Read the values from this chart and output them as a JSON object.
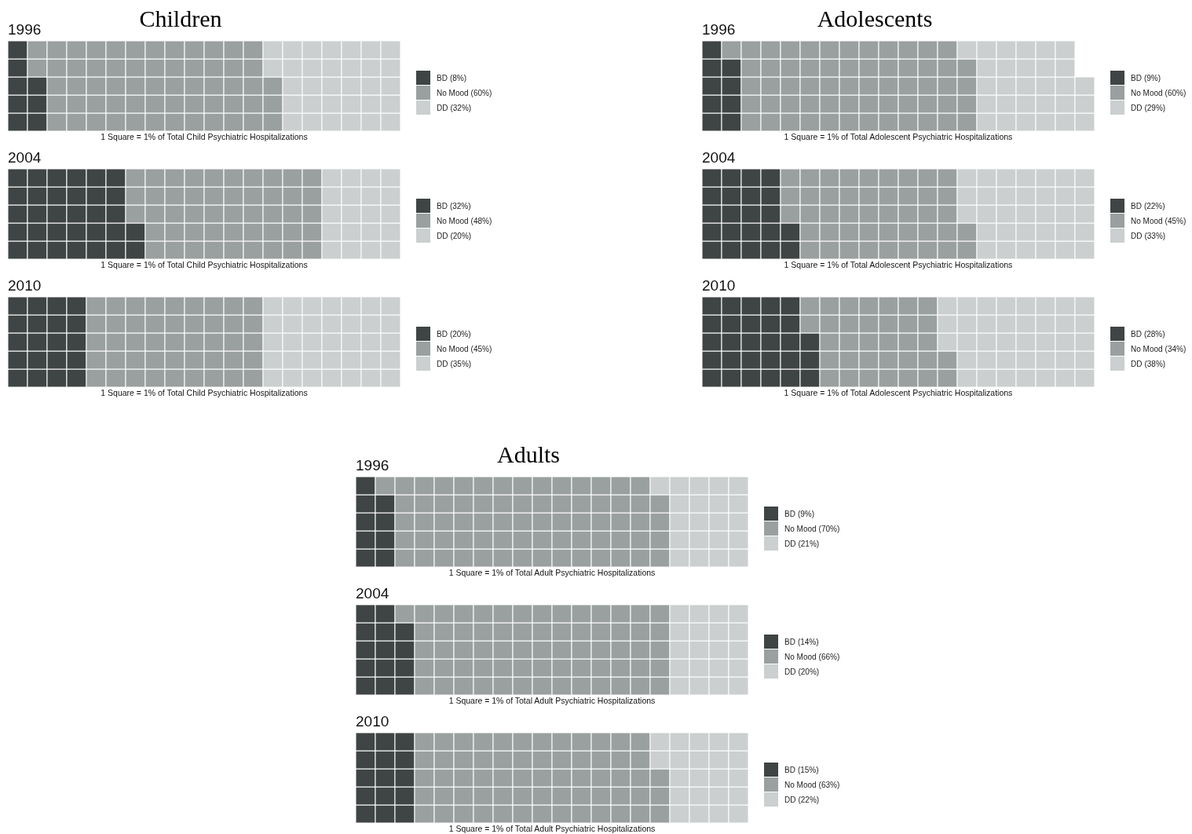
{
  "chart_data": [
    {
      "type": "other",
      "title": "Children",
      "subtitle": "1996",
      "categories": [
        "BD",
        "No Mood",
        "DD"
      ],
      "values": [
        8,
        60,
        32
      ],
      "value_labels": [
        "(8%)",
        "(60%)",
        "(32%)"
      ],
      "colors": [
        "#3f4444",
        "#9aa0a0",
        "#cbcfcf"
      ],
      "annotations": [
        "1 Square = 1% of Total Child Psychiatric Hospitalizations"
      ]
    },
    {
      "type": "other",
      "subtitle": "2004",
      "categories": [
        "BD",
        "No Mood",
        "DD"
      ],
      "values": [
        32,
        48,
        20
      ],
      "value_labels": [
        "(32%)",
        "(48%)",
        "(20%)"
      ],
      "colors": [
        "#3f4444",
        "#9aa0a0",
        "#cbcfcf"
      ],
      "annotations": [
        "1 Square = 1% of Total Child Psychiatric Hospitalizations"
      ]
    },
    {
      "type": "other",
      "subtitle": "2010",
      "categories": [
        "BD",
        "No Mood",
        "DD"
      ],
      "values": [
        20,
        45,
        35
      ],
      "value_labels": [
        "(20%)",
        "(45%)",
        "(35%)"
      ],
      "colors": [
        "#3f4444",
        "#9aa0a0",
        "#cbcfcf"
      ],
      "annotations": [
        "1 Square = 1% of Total Child Psychiatric Hospitalizations"
      ]
    },
    {
      "type": "other",
      "title": "Adolescents",
      "subtitle": "1996",
      "categories": [
        "BD",
        "No Mood",
        "DD"
      ],
      "values": [
        9,
        60,
        29
      ],
      "value_labels": [
        "(9%)",
        "(60%)",
        "(29%)"
      ],
      "colors": [
        "#3f4444",
        "#9aa0a0",
        "#cbcfcf"
      ],
      "annotations": [
        "1 Square = 1% of Total Adolescent Psychiatric Hospitalizations"
      ]
    },
    {
      "type": "other",
      "subtitle": "2004",
      "categories": [
        "BD",
        "No Mood",
        "DD"
      ],
      "values": [
        22,
        45,
        33
      ],
      "value_labels": [
        "(22%)",
        "(45%)",
        "(33%)"
      ],
      "colors": [
        "#3f4444",
        "#9aa0a0",
        "#cbcfcf"
      ],
      "annotations": [
        "1 Square = 1% of Total Adolescent Psychiatric Hospitalizations"
      ]
    },
    {
      "type": "other",
      "subtitle": "2010",
      "categories": [
        "BD",
        "No Mood",
        "DD"
      ],
      "values": [
        28,
        34,
        38
      ],
      "value_labels": [
        "(28%)",
        "(34%)",
        "(38%)"
      ],
      "colors": [
        "#3f4444",
        "#9aa0a0",
        "#cbcfcf"
      ],
      "annotations": [
        "1 Square = 1% of Total Adolescent Psychiatric Hospitalizations"
      ]
    },
    {
      "type": "other",
      "title": "Adults",
      "subtitle": "1996",
      "categories": [
        "BD",
        "No Mood",
        "DD"
      ],
      "values": [
        9,
        70,
        21
      ],
      "value_labels": [
        "(9%)",
        "(70%)",
        "(21%)"
      ],
      "colors": [
        "#3f4444",
        "#9aa0a0",
        "#cbcfcf"
      ],
      "annotations": [
        "1 Square = 1% of Total Adult Psychiatric Hospitalizations"
      ]
    },
    {
      "type": "other",
      "subtitle": "2004",
      "categories": [
        "BD",
        "No Mood",
        "DD"
      ],
      "values": [
        14,
        66,
        20
      ],
      "value_labels": [
        "(14%)",
        "(66%)",
        "(20%)"
      ],
      "colors": [
        "#3f4444",
        "#9aa0a0",
        "#cbcfcf"
      ],
      "annotations": [
        "1 Square = 1% of Total Adult Psychiatric Hospitalizations"
      ]
    },
    {
      "type": "other",
      "subtitle": "2010",
      "categories": [
        "BD",
        "No Mood",
        "DD"
      ],
      "values": [
        15,
        63,
        22
      ],
      "value_labels": [
        "(15%)",
        "(63%)",
        "(22%)"
      ],
      "colors": [
        "#3f4444",
        "#9aa0a0",
        "#cbcfcf"
      ],
      "annotations": [
        "1 Square = 1% of Total Adult Psychiatric Hospitalizations"
      ]
    }
  ]
}
